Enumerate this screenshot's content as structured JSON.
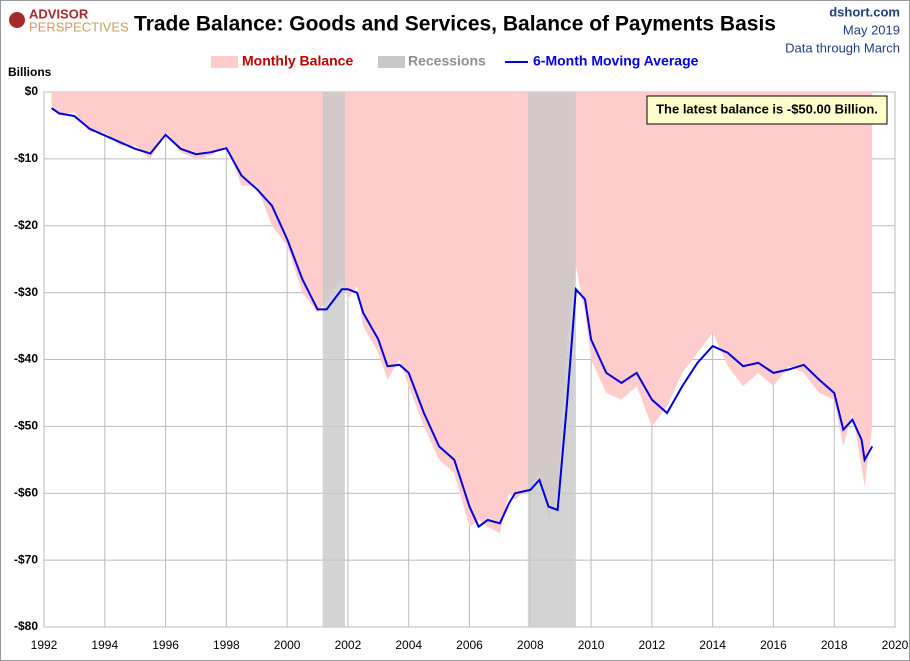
{
  "chart_data": {
    "type": "area_line",
    "title": "Trade Balance: Goods and Services, Balance of Payments Basis",
    "logo": {
      "top": "ADVISOR",
      "bottom": "PERSPECTIVES"
    },
    "source": "dshort.com",
    "date": "May 2019",
    "note": "Data through March",
    "y_label": "Billions",
    "annotation": "The latest balance is -$50.00 Billion.",
    "x": [
      1992.25,
      1992.5,
      1993.0,
      1993.5,
      1994.0,
      1994.5,
      1995.0,
      1995.5,
      1996.0,
      1996.5,
      1997.0,
      1997.5,
      1998.0,
      1998.5,
      1999.0,
      1999.5,
      2000.0,
      2000.5,
      2001.0,
      2001.3,
      2001.8,
      2002.0,
      2002.3,
      2002.5,
      2003.0,
      2003.3,
      2003.7,
      2004.0,
      2004.5,
      2005.0,
      2005.5,
      2006.0,
      2006.3,
      2006.6,
      2007.0,
      2007.3,
      2007.5,
      2008.0,
      2008.3,
      2008.6,
      2008.9,
      2009.2,
      2009.5,
      2009.8,
      2010.0,
      2010.5,
      2011.0,
      2011.5,
      2012.0,
      2012.5,
      2013.0,
      2013.5,
      2014.0,
      2014.5,
      2015.0,
      2015.5,
      2016.0,
      2016.5,
      2017.0,
      2017.5,
      2018.0,
      2018.3,
      2018.6,
      2018.9,
      2019.0,
      2019.25
    ],
    "series": [
      {
        "name": "Monthly Balance",
        "color": "#ffcccc",
        "label_color": "#c00000",
        "values": [
          -2.0,
          -3.5,
          -3.0,
          -6.0,
          -6.0,
          -8.0,
          -8.0,
          -10.0,
          -6.0,
          -9.0,
          -10.0,
          -9.5,
          -8.0,
          -14.0,
          -14.0,
          -20.0,
          -23.0,
          -30.0,
          -33.0,
          -31.0,
          -28.0,
          -31.0,
          -29.0,
          -35.0,
          -39.0,
          -43.0,
          -40.0,
          -44.0,
          -50.0,
          -55.0,
          -57.0,
          -65.0,
          -64.0,
          -65.0,
          -66.0,
          -60.0,
          -61.0,
          -59.0,
          -57.0,
          -64.0,
          -60.0,
          -38.0,
          -26.0,
          -33.0,
          -40.0,
          -45.0,
          -46.0,
          -44.0,
          -50.0,
          -47.0,
          -42.0,
          -39.0,
          -36.0,
          -41.0,
          -44.0,
          -42.0,
          -44.0,
          -41.0,
          -42.0,
          -45.0,
          -46.0,
          -53.0,
          -48.0,
          -56.0,
          -59.0,
          -50.0
        ]
      },
      {
        "name": "6-Month Moving Average",
        "color": "#0000dd",
        "values": [
          -2.4,
          -3.2,
          -3.6,
          -5.5,
          -6.5,
          -7.5,
          -8.5,
          -9.2,
          -6.4,
          -8.5,
          -9.3,
          -9.0,
          -8.4,
          -12.5,
          -14.5,
          -17.0,
          -22.0,
          -28.0,
          -32.5,
          -32.5,
          -29.5,
          -29.5,
          -30.0,
          -33.0,
          -37.0,
          -41.0,
          -40.8,
          -42.0,
          -48.0,
          -53.0,
          -55.0,
          -62.0,
          -65.0,
          -64.0,
          -64.5,
          -61.5,
          -60.0,
          -59.5,
          -58.0,
          -62.0,
          -62.5,
          -47.0,
          -29.5,
          -31.0,
          -37.0,
          -42.0,
          -43.5,
          -42.0,
          -46.0,
          -48.0,
          -44.0,
          -40.5,
          -38.0,
          -39.0,
          -41.0,
          -40.5,
          -42.0,
          -41.5,
          -40.8,
          -43.0,
          -45.0,
          -50.5,
          -49.0,
          -52.0,
          -55.0,
          -53.0
        ]
      }
    ],
    "recessions": {
      "name": "Recessions",
      "color": "#c8c8c8",
      "periods": [
        [
          2001.17,
          2001.9
        ],
        [
          2007.92,
          2009.5
        ]
      ]
    },
    "xlim": [
      1992,
      2020
    ],
    "xticks": [
      1992,
      1994,
      1996,
      1998,
      2000,
      2002,
      2004,
      2006,
      2008,
      2010,
      2012,
      2014,
      2016,
      2018,
      2020
    ],
    "ylim": [
      -80,
      0
    ],
    "yticks": [
      {
        "value": -80,
        "label": "-$80"
      },
      {
        "value": -70,
        "label": "-$70"
      },
      {
        "value": -60,
        "label": "-$60"
      },
      {
        "value": -50,
        "label": "-$50"
      },
      {
        "value": -40,
        "label": "-$40"
      },
      {
        "value": -30,
        "label": "-$30"
      },
      {
        "value": -20,
        "label": "-$20"
      },
      {
        "value": -10,
        "label": "-$10"
      },
      {
        "value": 0,
        "label": "$0"
      }
    ],
    "grid": true
  }
}
